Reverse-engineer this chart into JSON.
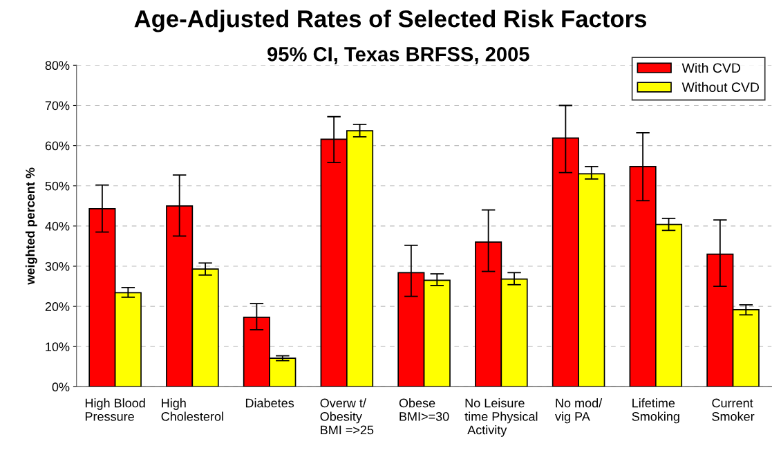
{
  "chart_data": {
    "type": "bar",
    "title": "Age-Adjusted Rates of Selected Risk Factors",
    "subtitle": "95% CI, Texas BRFSS, 2005",
    "ylabel": "weighted percent %",
    "categories": [
      "High Blood\nPressure",
      "High\nCholesterol",
      "Diabetes",
      "Overw t/\nObesity\nBMI =>25",
      "Obese\nBMI>=30",
      "No Leisure\ntime Physical\n Activity",
      "No mod/\nvig PA",
      "Lifetime\nSmoking",
      "Current\nSmoker"
    ],
    "series": [
      {
        "name": "With CVD",
        "color": "#ff0000",
        "values": [
          44.3,
          45.0,
          17.3,
          61.6,
          28.4,
          36.0,
          61.9,
          54.8,
          33.0
        ],
        "errors": [
          [
            38.5,
            50.2
          ],
          [
            37.5,
            52.7
          ],
          [
            14.2,
            20.7
          ],
          [
            55.8,
            67.2
          ],
          [
            22.5,
            35.2
          ],
          [
            28.7,
            44.0
          ],
          [
            53.3,
            70.0
          ],
          [
            46.3,
            63.2
          ],
          [
            25.0,
            41.5
          ]
        ]
      },
      {
        "name": "Without CVD",
        "color": "#ffff00",
        "values": [
          23.4,
          29.3,
          7.1,
          63.7,
          26.5,
          26.8,
          53.0,
          40.4,
          19.2
        ],
        "errors": [
          [
            22.3,
            24.7
          ],
          [
            27.8,
            30.8
          ],
          [
            6.5,
            7.7
          ],
          [
            62.2,
            65.3
          ],
          [
            25.2,
            28.1
          ],
          [
            25.4,
            28.4
          ],
          [
            51.7,
            54.8
          ],
          [
            38.9,
            41.9
          ],
          [
            17.9,
            20.4
          ]
        ]
      }
    ],
    "ylim": [
      0,
      80
    ],
    "yticks": [
      {
        "value": 0,
        "label": "0%"
      },
      {
        "value": 10,
        "label": "10%"
      },
      {
        "value": 20,
        "label": "20%"
      },
      {
        "value": 30,
        "label": "30%"
      },
      {
        "value": 40,
        "label": "40%"
      },
      {
        "value": 50,
        "label": "50%"
      },
      {
        "value": 60,
        "label": "60%"
      },
      {
        "value": 70,
        "label": "70%"
      },
      {
        "value": 80,
        "label": "80%"
      }
    ],
    "grid": "y",
    "legend": "top right"
  }
}
